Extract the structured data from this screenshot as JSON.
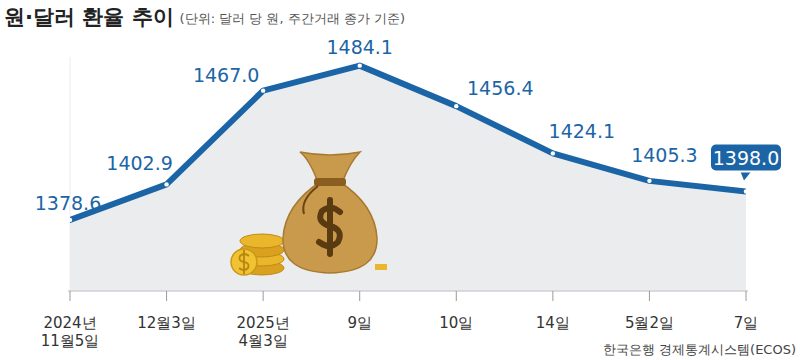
{
  "chart_data": {
    "type": "line",
    "title": "원·달러 환율 추이",
    "subtitle": "(단위: 달러 당 원, 주간거래 종가 기준)",
    "source": "한국은행 경제통계시스템(ECOS)",
    "categories": [
      "2024년\n11월5일",
      "12월3일",
      "2025년\n4월3일",
      "9일",
      "10일",
      "14일",
      "5월2일",
      "7일"
    ],
    "values": [
      1378.6,
      1402.9,
      1467.0,
      1484.1,
      1456.4,
      1424.1,
      1405.3,
      1398.0
    ],
    "value_labels": [
      "1378.6",
      "1402.9",
      "1467.0",
      "1484.1",
      "1456.4",
      "1424.1",
      "1405.3",
      "1398.0"
    ],
    "color": "#1b65a6",
    "ylim": [
      1330,
      1490
    ],
    "grid": false,
    "tick_labels": "x",
    "data_labels": true,
    "marker": "circle"
  }
}
